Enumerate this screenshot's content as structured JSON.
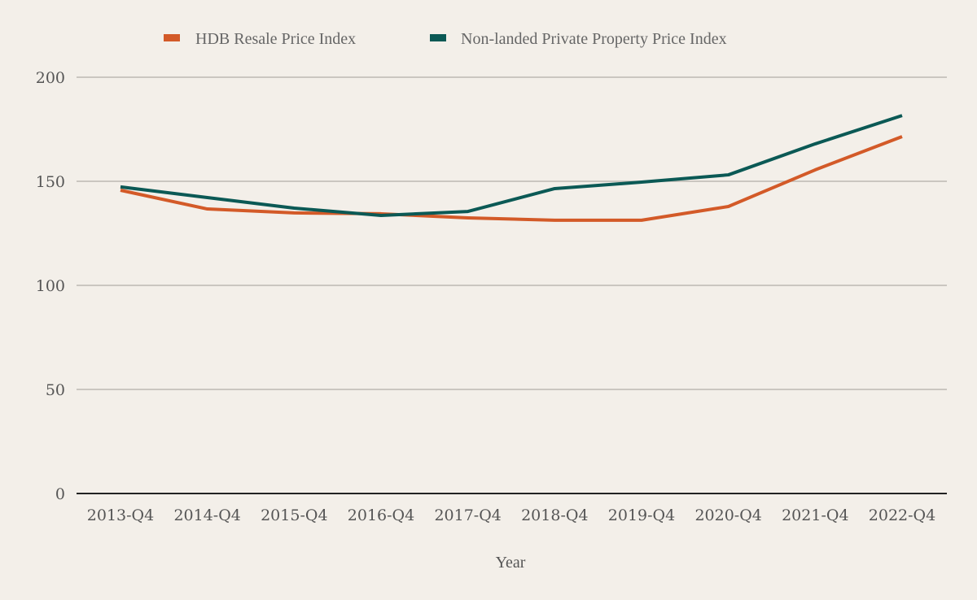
{
  "chart_data": {
    "type": "line",
    "title": "",
    "xlabel": "Year",
    "ylabel": "",
    "ylim": [
      0,
      200
    ],
    "yticks": [
      0,
      50,
      100,
      150,
      200
    ],
    "grid": true,
    "legend_position": "top-center",
    "categories": [
      "2013-Q4",
      "2014-Q4",
      "2015-Q4",
      "2016-Q4",
      "2017-Q4",
      "2018-Q4",
      "2019-Q4",
      "2020-Q4",
      "2021-Q4",
      "2022-Q4"
    ],
    "series": [
      {
        "name": "HDB Resale Price Index",
        "color": "#d35a28",
        "values": [
          145.7,
          136.7,
          134.8,
          134.4,
          132.4,
          131.3,
          131.3,
          137.9,
          155.5,
          171.5
        ]
      },
      {
        "name": "Non-landed Private Property Price Index",
        "color": "#0b5955",
        "values": [
          147.3,
          142.2,
          137.1,
          133.6,
          135.5,
          146.5,
          149.6,
          153.1,
          168.0,
          181.6
        ]
      }
    ]
  },
  "colors": {
    "background": "#f3efe9",
    "gridline": "#bdb8b2",
    "baseline": "#222222",
    "text": "#555555"
  }
}
